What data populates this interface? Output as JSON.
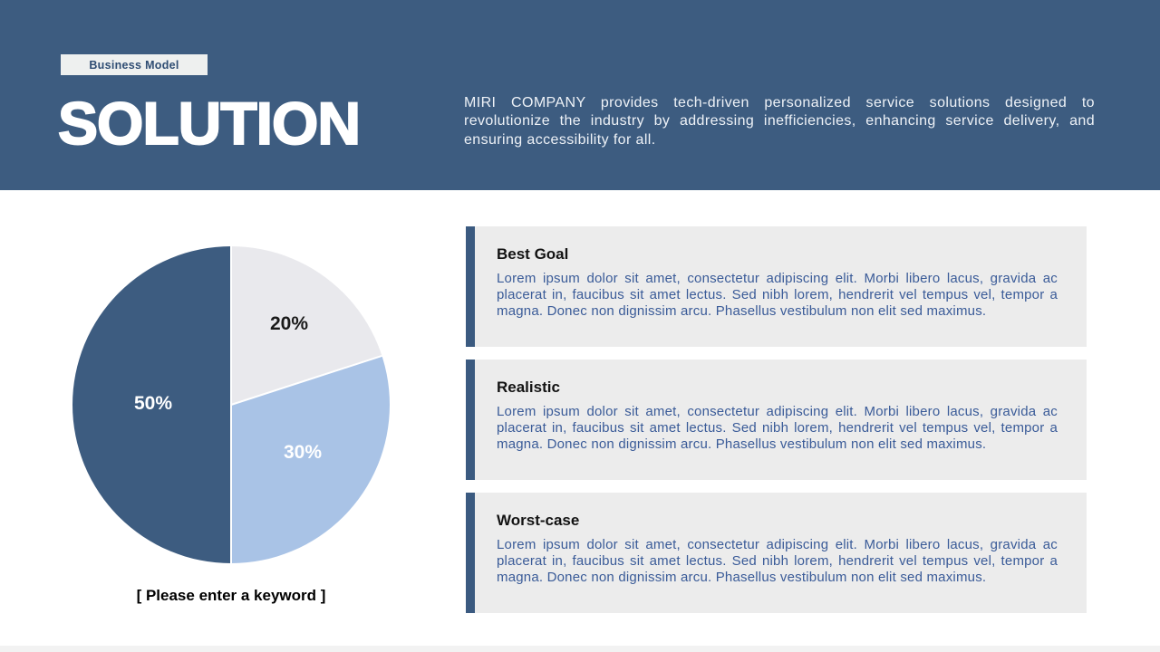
{
  "slide": {
    "badge": "Business Model",
    "title": "SOLUTION",
    "description": "MIRI COMPANY provides tech-driven personalized service solutions designed to revolutionize the industry by addressing inefficiencies, enhancing service delivery, and ensuring accessibility for all."
  },
  "chart_data": {
    "type": "pie",
    "labels": [
      "20%",
      "30%",
      "50%"
    ],
    "values": [
      20,
      30,
      50
    ],
    "colors": [
      "#e9e9ed",
      "#a9c3e6",
      "#3d5c80"
    ],
    "start_angle_deg": 0,
    "direction": "clockwise",
    "caption": "[ Please enter a keyword ]"
  },
  "cards": [
    {
      "title": "Best Goal",
      "body": "Lorem ipsum dolor sit amet, consectetur adipiscing elit. Morbi libero lacus, gravida ac placerat in, faucibus sit amet lectus. Sed nibh lorem, hendrerit vel tempus vel, tempor a magna. Donec non dignissim arcu. Phasellus vestibulum non elit sed maximus."
    },
    {
      "title": "Realistic",
      "body": "Lorem ipsum dolor sit amet, consectetur adipiscing elit. Morbi libero lacus, gravida ac placerat in, faucibus sit amet lectus. Sed nibh lorem, hendrerit vel tempus vel, tempor a magna. Donec non dignissim arcu. Phasellus vestibulum non elit sed maximus."
    },
    {
      "title": "Worst-case",
      "body": "Lorem ipsum dolor sit amet, consectetur adipiscing elit. Morbi libero lacus, gravida ac placerat in, faucibus sit amet lectus. Sed nibh lorem, hendrerit vel tempus vel, tempor a magna. Donec non dignissim arcu. Phasellus vestibulum non elit sed maximus."
    }
  ],
  "colors": {
    "primary": "#3d5c80",
    "accent-bar": "#3b5a80",
    "card-bg": "#ececec",
    "body-text": "#3a5b98"
  }
}
